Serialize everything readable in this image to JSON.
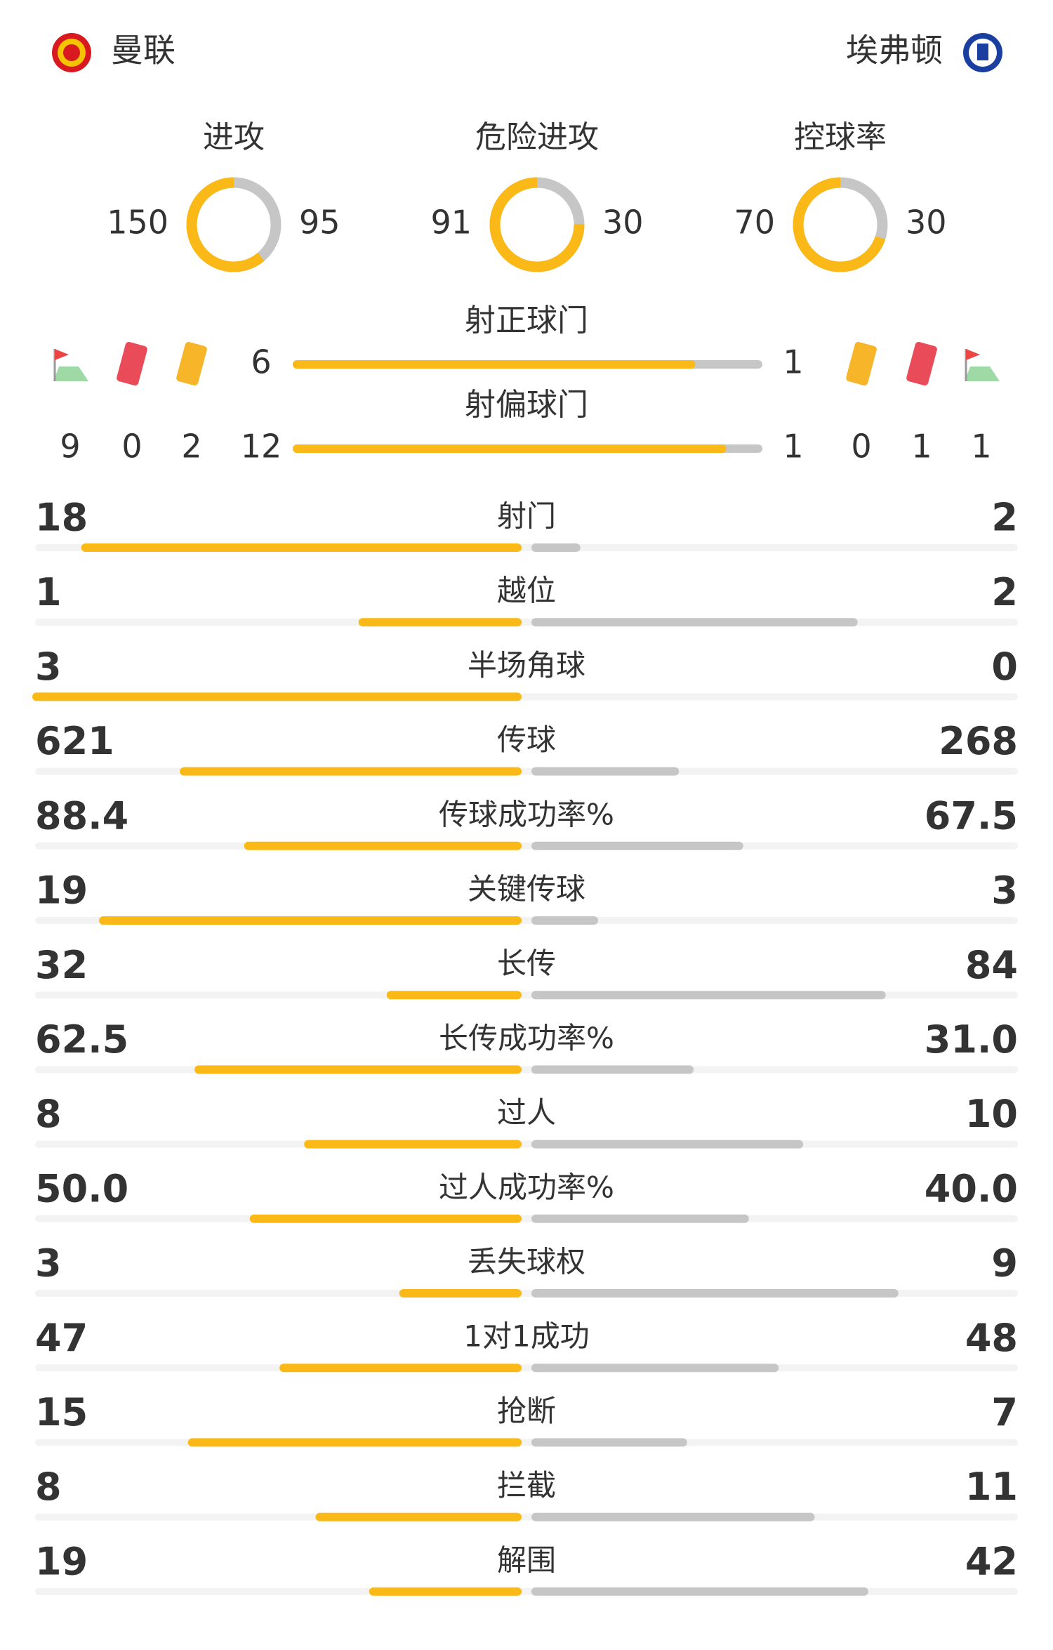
{
  "teams": {
    "home": {
      "name": "曼联"
    },
    "away": {
      "name": "埃弗顿"
    }
  },
  "rings": [
    {
      "label": "进攻",
      "home": 150,
      "away": 95
    },
    {
      "label": "危险进攻",
      "home": 91,
      "away": 30
    },
    {
      "label": "控球率",
      "home": 70,
      "away": 30
    }
  ],
  "shots": [
    {
      "label": "射正球门",
      "home": 6,
      "away": 1
    },
    {
      "label": "射偏球门",
      "home": 12,
      "away": 1
    }
  ],
  "discipline": {
    "home": {
      "corners": 9,
      "red_cards": 0,
      "yellow_cards": 2
    },
    "away": {
      "yellow_cards": 0,
      "red_cards": 1,
      "corners": 1
    }
  },
  "stats": [
    {
      "label": "射门",
      "home": 18,
      "away": 2
    },
    {
      "label": "越位",
      "home": 1,
      "away": 2
    },
    {
      "label": "半场角球",
      "home": 3,
      "away": 0
    },
    {
      "label": "传球",
      "home": 621,
      "away": 268
    },
    {
      "label": "传球成功率%",
      "home": 88.4,
      "away": 67.5
    },
    {
      "label": "关键传球",
      "home": 19,
      "away": 3
    },
    {
      "label": "长传",
      "home": 32,
      "away": 84
    },
    {
      "label": "长传成功率%",
      "home": 62.5,
      "away": 31,
      "away_label": "31.0"
    },
    {
      "label": "过人",
      "home": 8,
      "away": 10
    },
    {
      "label": "过人成功率%",
      "home": 50,
      "home_label": "50.0",
      "away": 40,
      "away_label": "40.0"
    },
    {
      "label": "丢失球权",
      "home": 3,
      "away": 9
    },
    {
      "label": "1对1成功",
      "home": 47,
      "away": 48
    },
    {
      "label": "抢断",
      "home": 15,
      "away": 7
    },
    {
      "label": "拦截",
      "home": 8,
      "away": 11
    },
    {
      "label": "解围",
      "home": 19,
      "away": 42
    }
  ]
}
